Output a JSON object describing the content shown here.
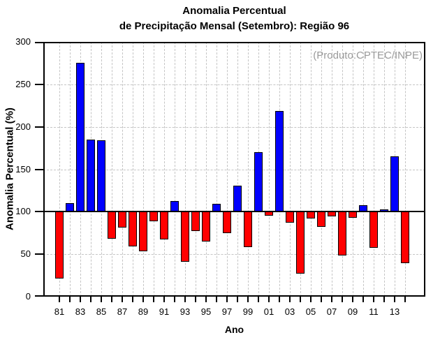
{
  "title": {
    "line1": "Anomalia Percentual",
    "line2": "de Precipitação Mensal (Setembro): Região 96"
  },
  "annotation": {
    "text": "(Produto:CPTEC/INPE)",
    "color": "#9a9a9a"
  },
  "axes": {
    "y_label": "Anomalia Percentual (%)",
    "x_label": "Ano"
  },
  "colors": {
    "bar_above_baseline": "#0000ff",
    "bar_below_baseline": "#ff0000",
    "bar_outline": "#000000",
    "gridline": "#c4c4c4",
    "axis": "#000000",
    "background": "#ffffff"
  },
  "chart_data": {
    "type": "bar",
    "title": "Anomalia Percentual de Precipitação Mensal (Setembro): Região 96",
    "xlabel": "Ano",
    "ylabel": "Anomalia Percentual (%)",
    "ylim": [
      0,
      300
    ],
    "y_ticks": [
      0,
      50,
      100,
      150,
      200,
      250,
      300
    ],
    "baseline": 100,
    "grid": "dashed light-gray gridlines, vertical at every year and horizontal at every 50",
    "legend": "none",
    "annotation": "(Produto:CPTEC/INPE)",
    "color_rule": "blue bar when value >= 100, red bar when value < 100",
    "categories": [
      "81",
      "82",
      "83",
      "84",
      "85",
      "86",
      "87",
      "88",
      "89",
      "90",
      "91",
      "92",
      "93",
      "94",
      "95",
      "96",
      "97",
      "98",
      "99",
      "00",
      "01",
      "02",
      "03",
      "04",
      "05",
      "06",
      "07",
      "08",
      "09",
      "10",
      "11",
      "12",
      "13",
      "14"
    ],
    "x_tick_labels_shown": [
      "81",
      "83",
      "85",
      "87",
      "89",
      "91",
      "93",
      "95",
      "97",
      "99",
      "01",
      "03",
      "05",
      "07",
      "09",
      "11",
      "13"
    ],
    "values": [
      22,
      110,
      275,
      185,
      184,
      69,
      82,
      60,
      54,
      90,
      68,
      113,
      42,
      78,
      66,
      109,
      76,
      131,
      59,
      170,
      96,
      219,
      88,
      28,
      93,
      83,
      95,
      49,
      94,
      108,
      58,
      103,
      165,
      40
    ]
  }
}
